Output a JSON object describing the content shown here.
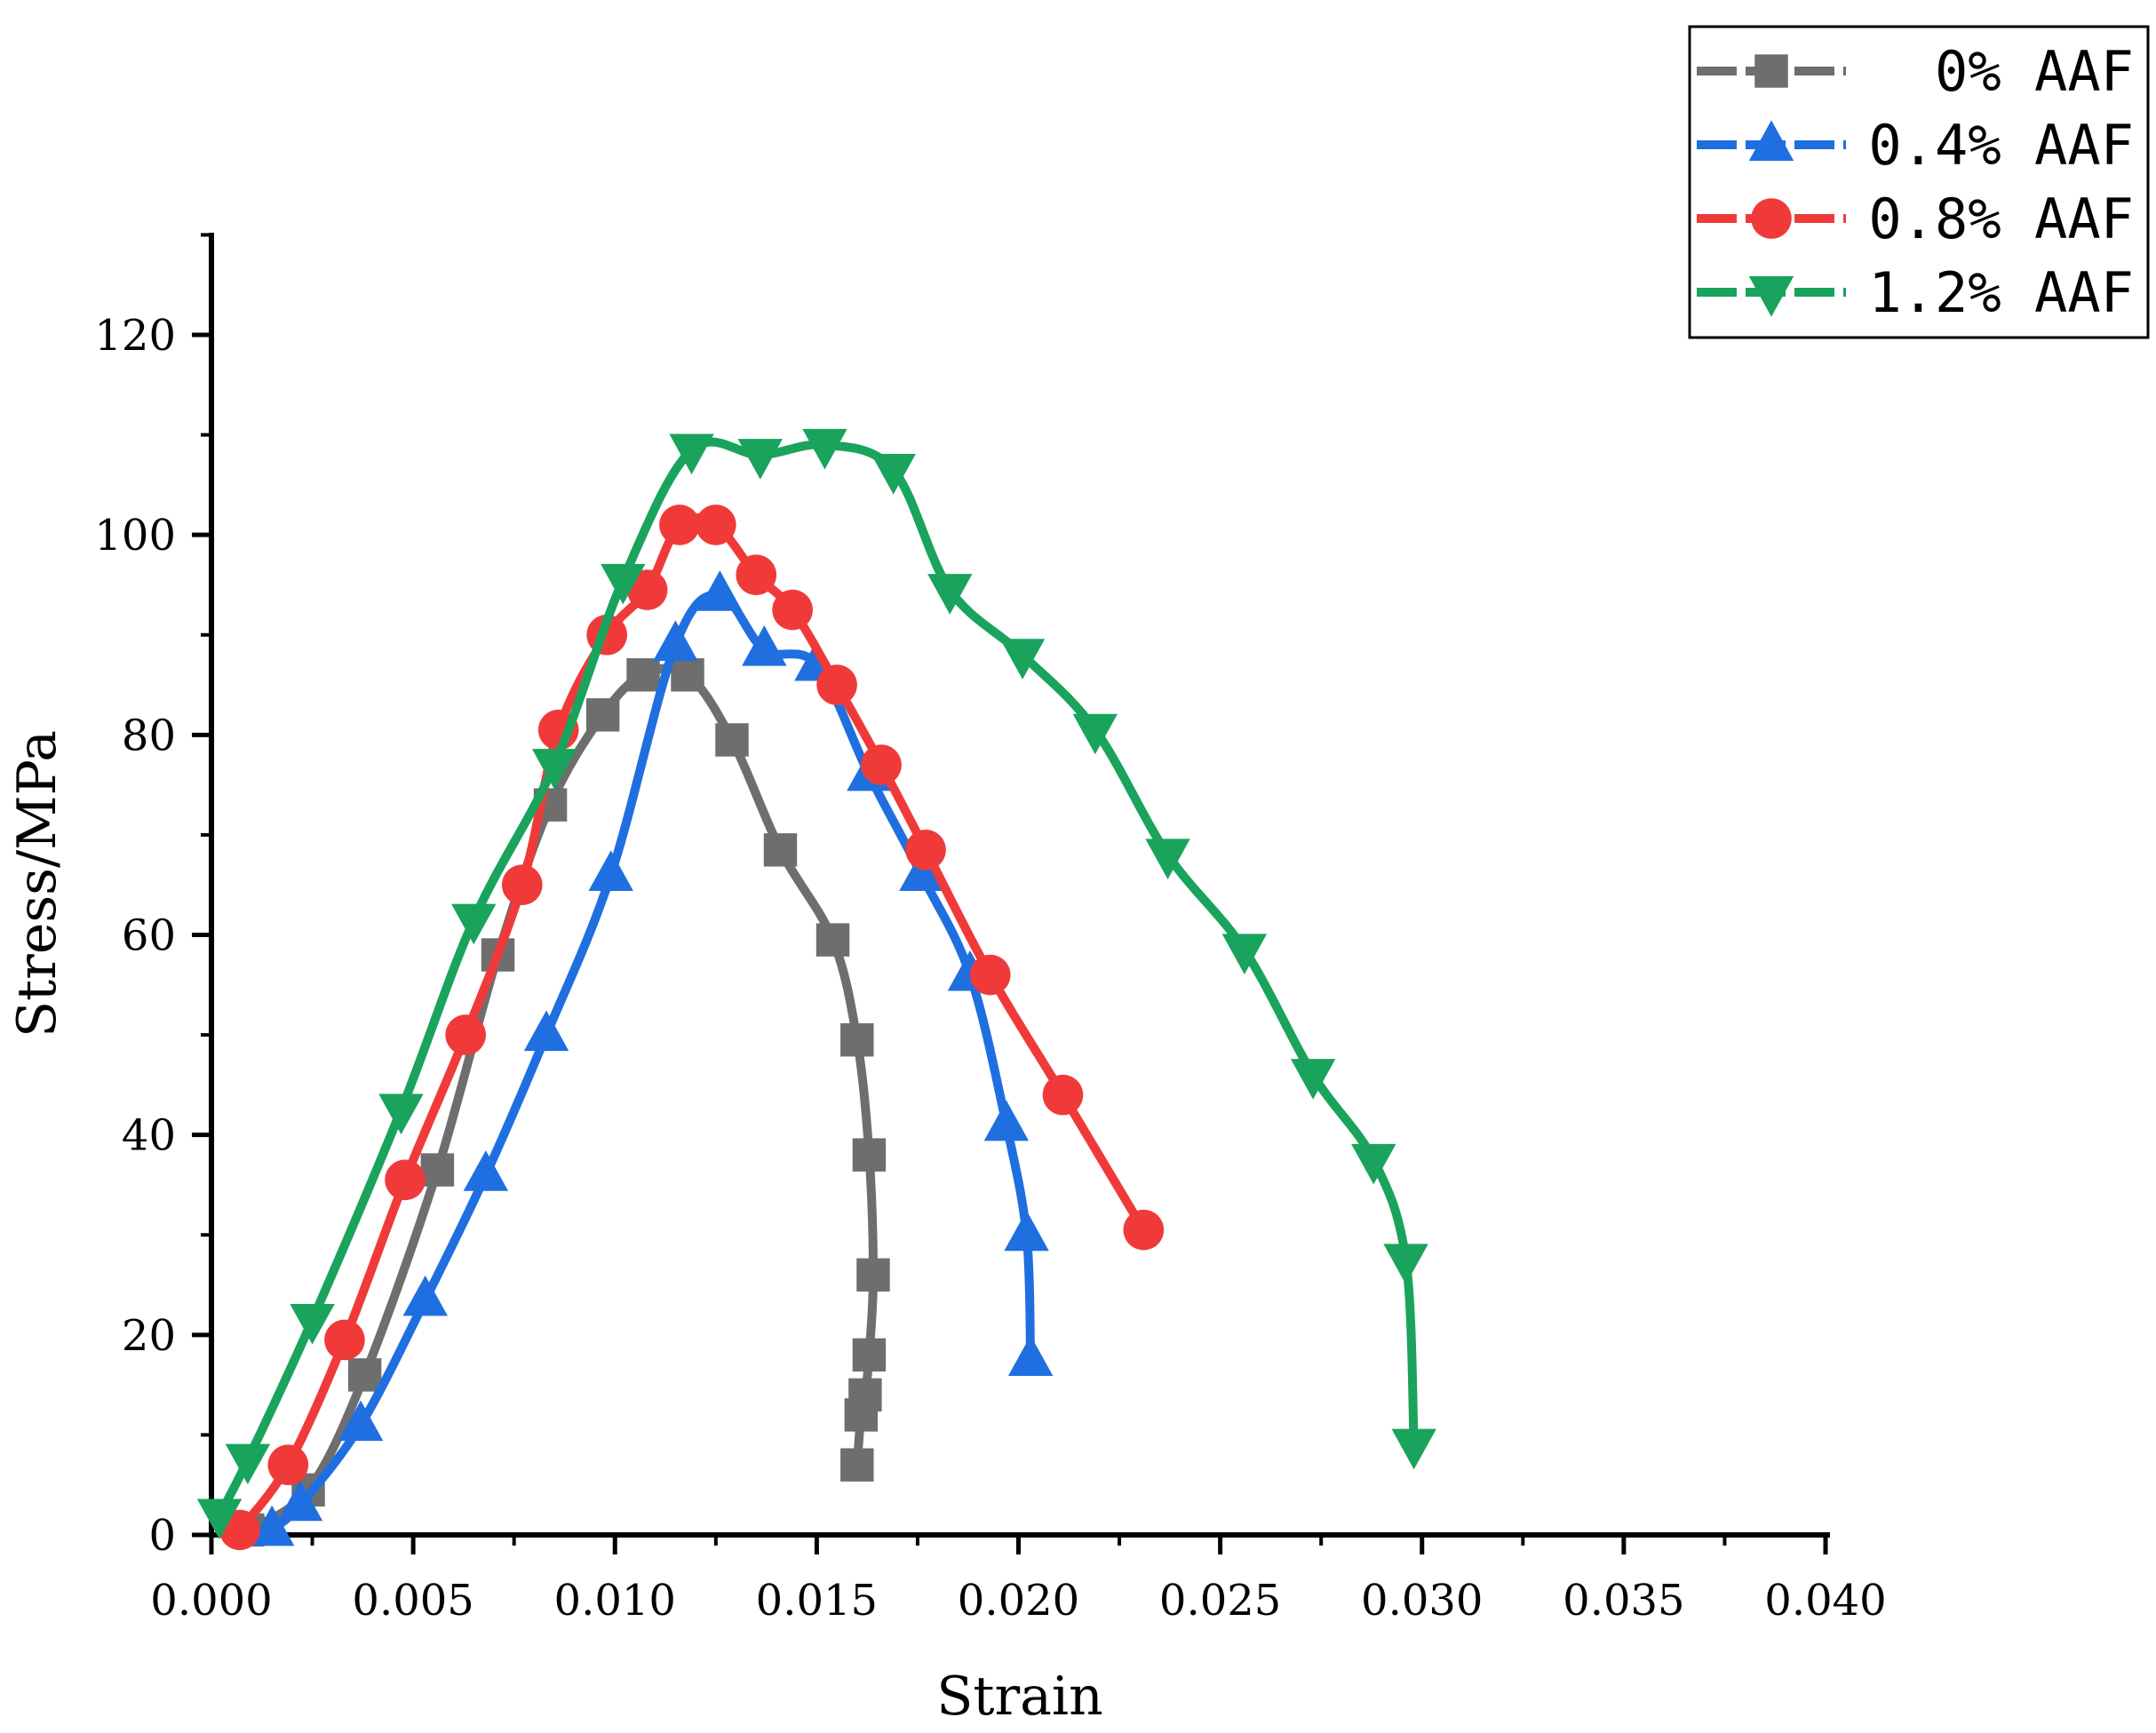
{
  "chart_data": {
    "type": "line",
    "title": "",
    "xlabel": "Strain",
    "ylabel": "Stress/MPa",
    "xlim": [
      0.0,
      0.04
    ],
    "ylim": [
      0,
      130
    ],
    "x_ticks": [
      "0.000",
      "0.005",
      "0.010",
      "0.015",
      "0.020",
      "0.025",
      "0.030",
      "0.035",
      "0.040"
    ],
    "y_ticks": [
      "0",
      "20",
      "40",
      "60",
      "80",
      "100",
      "120"
    ],
    "legend_position": "top-right",
    "series": [
      {
        "name": "0% AAF",
        "color": "#6e6e6e",
        "marker": "square",
        "x": [
          0.0009,
          0.0024,
          0.0038,
          0.0056,
          0.0071,
          0.0084,
          0.0097,
          0.0107,
          0.0118,
          0.0129,
          0.0141,
          0.0154,
          0.016,
          0.0163,
          0.0164,
          0.0163,
          0.0162,
          0.0161,
          0.016
        ],
        "y": [
          0.5,
          4.5,
          16,
          36.5,
          58,
          73,
          82,
          86,
          86,
          79.5,
          68.5,
          59.5,
          49.5,
          38,
          26,
          18,
          14,
          12,
          7
        ]
      },
      {
        "name": "0.4% AAF",
        "color": "#1f6fe0",
        "marker": "triangle-up",
        "x": [
          0.0015,
          0.0022,
          0.0037,
          0.0053,
          0.0068,
          0.0083,
          0.0099,
          0.0115,
          0.0126,
          0.0137,
          0.015,
          0.0163,
          0.0176,
          0.0188,
          0.0197,
          0.0202,
          0.0203
        ],
        "y": [
          0.5,
          3,
          11,
          23.5,
          36,
          50,
          66,
          89,
          94,
          88.5,
          87,
          76,
          66,
          56,
          41,
          30,
          17.5
        ]
      },
      {
        "name": "0.8% AAF",
        "color": "#f03a3a",
        "marker": "circle",
        "x": [
          0.0007,
          0.0019,
          0.0033,
          0.0048,
          0.0063,
          0.0077,
          0.0086,
          0.0098,
          0.0108,
          0.0116,
          0.0125,
          0.0135,
          0.0144,
          0.0155,
          0.0166,
          0.0177,
          0.0193,
          0.0211,
          0.0231
        ],
        "y": [
          0.5,
          7,
          19.5,
          35.5,
          50,
          65,
          80.5,
          90,
          94.5,
          101,
          101,
          96,
          92.5,
          85,
          77,
          68.5,
          56,
          44,
          30.5
        ]
      },
      {
        "name": "1.2% AAF",
        "color": "#1aa35c",
        "marker": "triangle-down",
        "x": [
          0.0002,
          0.0009,
          0.0025,
          0.0047,
          0.0065,
          0.0085,
          0.0102,
          0.0119,
          0.0136,
          0.0152,
          0.0169,
          0.0183,
          0.0201,
          0.0219,
          0.0237,
          0.0256,
          0.0273,
          0.0288,
          0.0296,
          0.0298
        ],
        "y": [
          2,
          7.5,
          21.5,
          42.5,
          61.5,
          77,
          95.5,
          108.5,
          108,
          109,
          106.5,
          94.5,
          88,
          80.5,
          68,
          58.5,
          46,
          37.5,
          27.5,
          9
        ]
      }
    ]
  }
}
